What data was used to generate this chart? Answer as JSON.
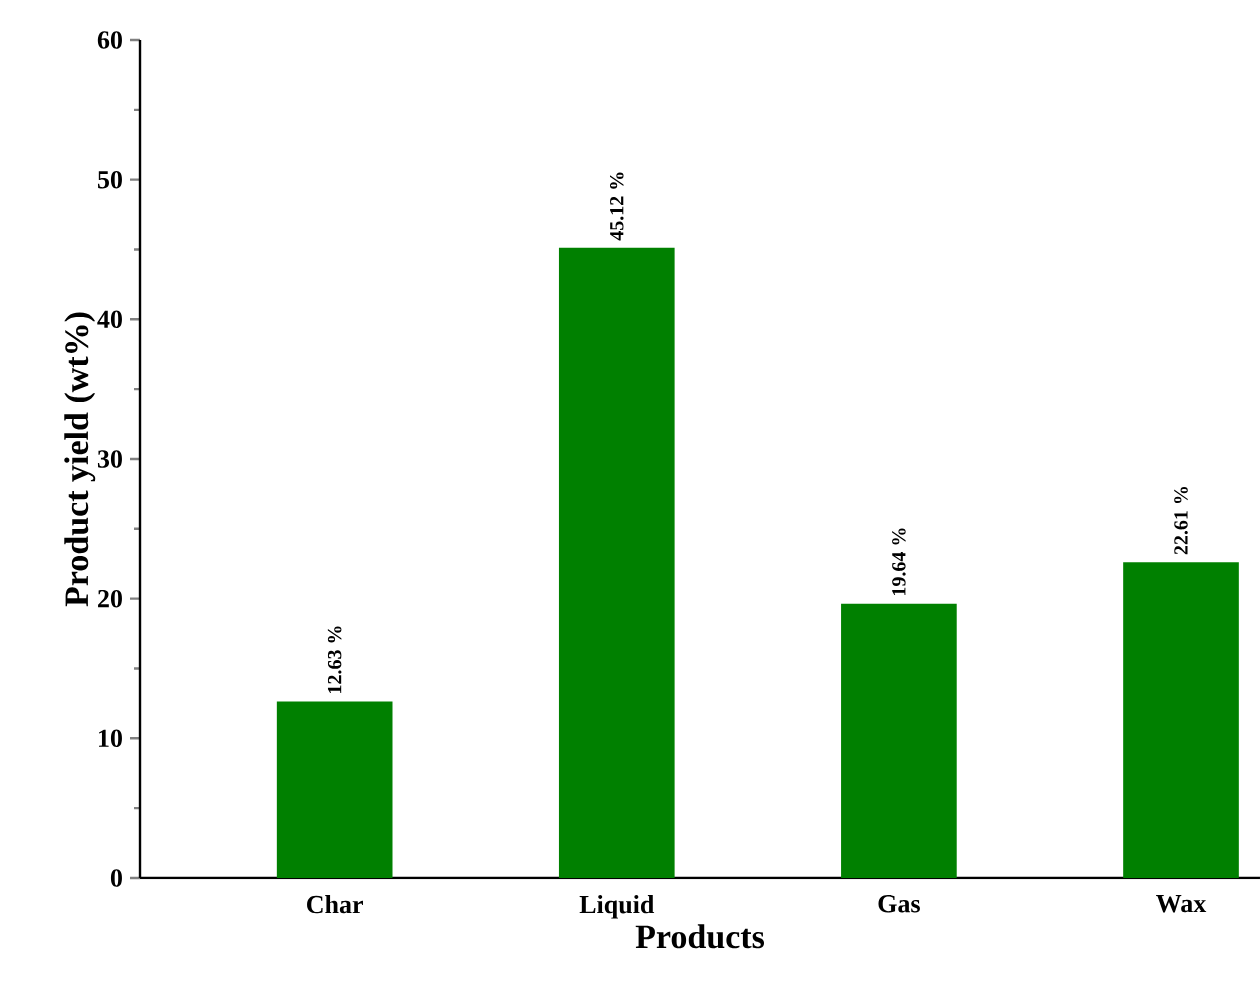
{
  "chart_data": {
    "type": "bar",
    "xlabel": "Products",
    "ylabel": "Product yield (wt%)",
    "categories": [
      "Char",
      "Liquid",
      "Gas",
      "Wax"
    ],
    "values": [
      12.63,
      45.12,
      19.64,
      22.61
    ],
    "value_labels": [
      "12.63 %",
      "45.12 %",
      "19.64 %",
      "22.61 %"
    ],
    "color": "#008000",
    "ylim": [
      0,
      60
    ],
    "yticks": [
      0,
      10,
      20,
      30,
      40,
      50,
      60
    ],
    "grid": false
  }
}
